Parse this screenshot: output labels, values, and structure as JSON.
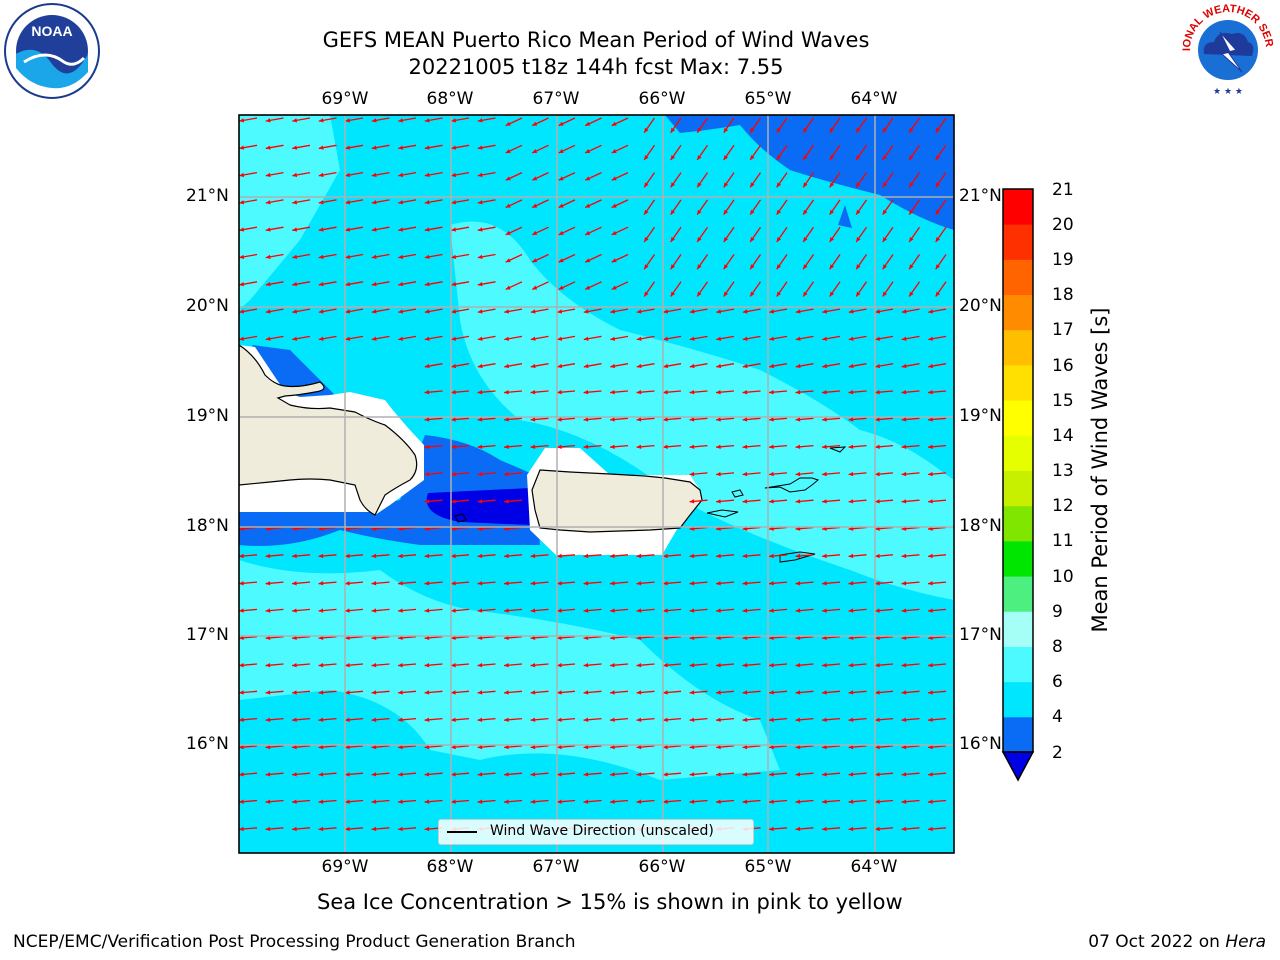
{
  "title": {
    "line1": "GEFS MEAN Puerto Rico Mean Period of Wind Waves",
    "line2": "20221005 t18z 144h fcst   Max: 7.55"
  },
  "map": {
    "lon_labels": [
      "69°W",
      "68°W",
      "67°W",
      "66°W",
      "65°W",
      "64°W"
    ],
    "lat_labels": [
      "21°N",
      "20°N",
      "19°N",
      "18°N",
      "17°N",
      "16°N"
    ],
    "legend_label": "Wind Wave Direction (unscaled)",
    "colors": {
      "land": "#efecdc",
      "arrows": "#ff0000",
      "grid": "#b0b0b0"
    }
  },
  "colorbar": {
    "label": "Mean Period of Wind Waves [s]",
    "ticks": [
      "21",
      "20",
      "19",
      "18",
      "17",
      "16",
      "15",
      "14",
      "13",
      "12",
      "11",
      "10",
      "9",
      "8",
      "6",
      "4",
      "2"
    ],
    "colors": [
      "#0000e6",
      "#0a6cf5",
      "#00e6ff",
      "#4dfaff",
      "#a6fff7",
      "#4df080",
      "#00e600",
      "#80e600",
      "#c6f000",
      "#e6ff00",
      "#ffff00",
      "#ffe000",
      "#ffbe00",
      "#ff8c00",
      "#ff6400",
      "#ff3000",
      "#ff0000"
    ]
  },
  "note": "Sea Ice Concentration > 15% is shown in pink to yellow",
  "footer": {
    "left": "NCEP/EMC/Verification Post Processing Product Generation Branch",
    "right_date": "07 Oct 2022 on",
    "right_host": "Hera"
  },
  "logos": {
    "noaa": "NOAA",
    "nws": "NATIONAL WEATHER SERVICE"
  }
}
